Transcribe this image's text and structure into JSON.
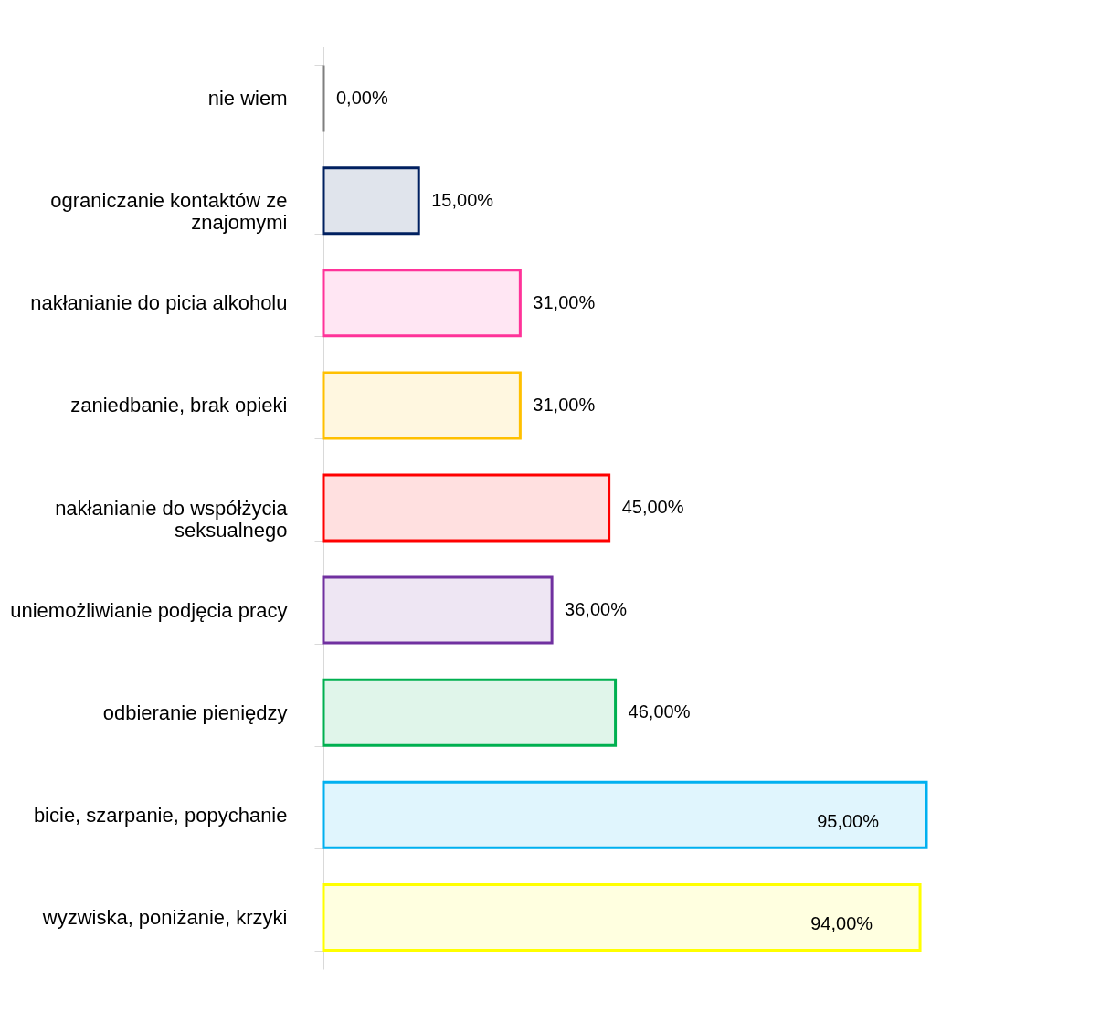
{
  "chart_data": {
    "type": "bar",
    "orientation": "horizontal",
    "categories": [
      "nie wiem",
      "ograniczanie kontaktów ze znajomymi",
      "nakłanianie do picia alkoholu",
      "zaniedbanie, brak opieki",
      "nakłanianie do współżycia seksualnego",
      "uniemożliwianie podjęcia pracy",
      "odbieranie pieniędzy",
      "bicie, szarpanie, popychanie",
      "wyzwiska, poniżanie, krzyki"
    ],
    "values": [
      0,
      15,
      31,
      31,
      45,
      36,
      46,
      95,
      94
    ],
    "value_labels": [
      "0,00%",
      "15,00%",
      "31,00%",
      "31,00%",
      "45,00%",
      "36,00%",
      "46,00%",
      "95,00%",
      "94,00%"
    ],
    "colors": [
      "#7f7f7f",
      "#002060",
      "#ff3399",
      "#ffc000",
      "#ff0000",
      "#7030a0",
      "#00b050",
      "#00b0f0",
      "#ffff00"
    ],
    "grid": false,
    "tick_labels": "y"
  }
}
